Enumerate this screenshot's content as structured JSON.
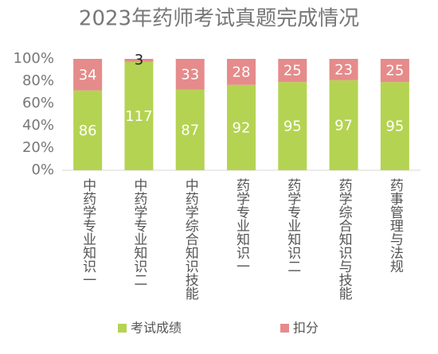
{
  "chart_data": {
    "type": "bar",
    "stack": "percent",
    "title": "2023年药师考试真题完成情况",
    "categories": [
      "中药学专业知识一",
      "中药学专业知识二",
      "中药学综合知识技能",
      "药学专业知识一",
      "药学专业知识二",
      "药学综合知识与技能",
      "药事管理与法规"
    ],
    "series": [
      {
        "name": "考试成绩",
        "color": "#b5d352",
        "values": [
          86,
          117,
          87,
          92,
          95,
          97,
          95
        ]
      },
      {
        "name": "扣分",
        "color": "#e58b8b",
        "values": [
          34,
          3,
          33,
          28,
          25,
          23,
          25
        ]
      }
    ],
    "ylim": [
      0,
      100
    ],
    "yticks": [
      {
        "value": 0,
        "label": "0%"
      },
      {
        "value": 20,
        "label": "20%"
      },
      {
        "value": 40,
        "label": "40%"
      },
      {
        "value": 60,
        "label": "60%"
      },
      {
        "value": 80,
        "label": "80%"
      },
      {
        "value": 100,
        "label": "100%"
      }
    ],
    "grid": false,
    "legend": "bottom"
  }
}
